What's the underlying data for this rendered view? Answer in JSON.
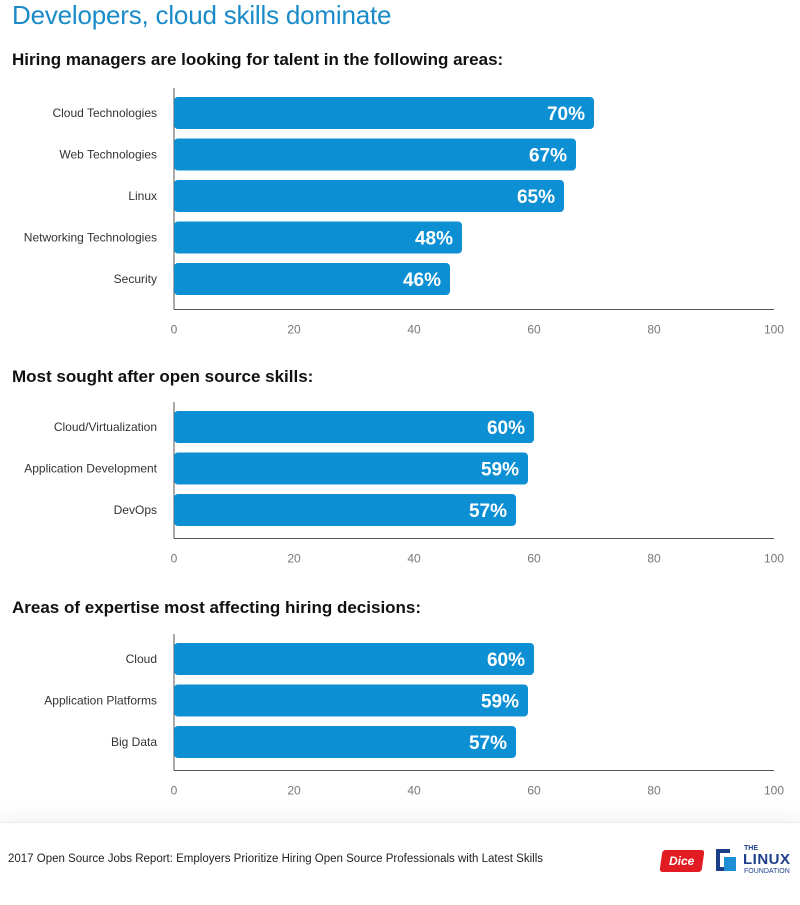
{
  "page_title": "Developers, cloud skills dominate",
  "colors": {
    "bar": "#0d8fd4",
    "axis": "#555555",
    "title": "#1a8bc9",
    "bar_label": "#ffffff"
  },
  "chart_data": [
    {
      "type": "bar",
      "orientation": "horizontal",
      "title": "Hiring managers are looking for talent in the following areas:",
      "categories": [
        "Cloud Technologies",
        "Web Technologies",
        "Linux",
        "Networking Technologies",
        "Security"
      ],
      "values": [
        70,
        67,
        65,
        48,
        46
      ],
      "value_labels": [
        "70%",
        "67%",
        "65%",
        "48%",
        "46%"
      ],
      "xlim": [
        0,
        100
      ],
      "ticks": [
        "0",
        "20",
        "40",
        "60",
        "80",
        "100"
      ]
    },
    {
      "type": "bar",
      "orientation": "horizontal",
      "title": "Most sought after open source skills:",
      "categories": [
        "Cloud/Virtualization",
        "Application Development",
        "DevOps"
      ],
      "values": [
        60,
        59,
        57
      ],
      "value_labels": [
        "60%",
        "59%",
        "57%"
      ],
      "xlim": [
        0,
        100
      ],
      "ticks": [
        "0",
        "20",
        "40",
        "60",
        "80",
        "100"
      ]
    },
    {
      "type": "bar",
      "orientation": "horizontal",
      "title": "Areas of expertise most affecting hiring decisions:",
      "categories": [
        "Cloud",
        "Application Platforms",
        "Big Data"
      ],
      "values": [
        60,
        59,
        57
      ],
      "value_labels": [
        "60%",
        "59%",
        "57%"
      ],
      "xlim": [
        0,
        100
      ],
      "ticks": [
        "0",
        "20",
        "40",
        "60",
        "80",
        "100"
      ]
    }
  ],
  "footer": {
    "text": "2017 Open Source Jobs Report: Employers Prioritize Hiring Open Source Professionals with Latest Skills",
    "dice_logo": "Dice",
    "lf_logo_the": "THE",
    "lf_logo_linux": "LINUX",
    "lf_logo_foundation": "FOUNDATION"
  }
}
